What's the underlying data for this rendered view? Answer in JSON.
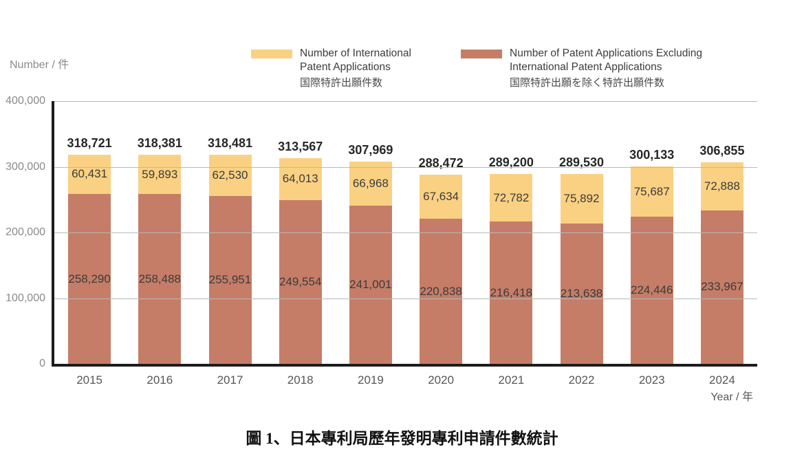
{
  "axis_title_y": "Number / 件",
  "axis_title_x": "Year / 年",
  "caption": "圖 1、日本專利局歷年發明專利申請件數統計",
  "legend": [
    {
      "line1": "Number of International",
      "line2": "Patent Applications",
      "sub": "国際特許出願件数",
      "color": "#FAD182"
    },
    {
      "line1": "Number of Patent Applications Excluding",
      "line2": "International Patent Applications",
      "sub": "国際特許出願を除く特許出願件数",
      "color": "#C57D68"
    }
  ],
  "chart_data": {
    "type": "bar",
    "stacked": true,
    "title": "",
    "xlabel": "Year / 年",
    "ylabel": "Number / 件",
    "ylim": [
      0,
      400000
    ],
    "y_ticks": [
      0,
      100000,
      200000,
      300000,
      400000
    ],
    "grid": true,
    "legend_position": "top",
    "categories": [
      "2015",
      "2016",
      "2017",
      "2018",
      "2019",
      "2020",
      "2021",
      "2022",
      "2023",
      "2024"
    ],
    "series": [
      {
        "name": "Number of International Patent Applications",
        "name_ja": "国際特許出願件数",
        "color": "#FAD182",
        "stack_position": "top",
        "values": [
          60431,
          59893,
          62530,
          64013,
          66968,
          67634,
          72782,
          75892,
          75687,
          72888
        ]
      },
      {
        "name": "Number of Patent Applications Excluding International Patent Applications",
        "name_ja": "国際特許出願を除く特許出願件数",
        "color": "#C57D68",
        "stack_position": "bottom",
        "values": [
          258290,
          258488,
          255951,
          249554,
          241001,
          220838,
          216418,
          213638,
          224446,
          233967
        ]
      }
    ],
    "totals": [
      318721,
      318381,
      318481,
      313567,
      307969,
      288472,
      289200,
      289530,
      300133,
      306855
    ],
    "colors": {
      "grid": "#b8b8b8",
      "axis": "#1c1c1c",
      "tick_label": "#8a8a8a",
      "category_label": "#565656",
      "total_label": "#272727",
      "segment_label": "#3b3b3b"
    }
  }
}
